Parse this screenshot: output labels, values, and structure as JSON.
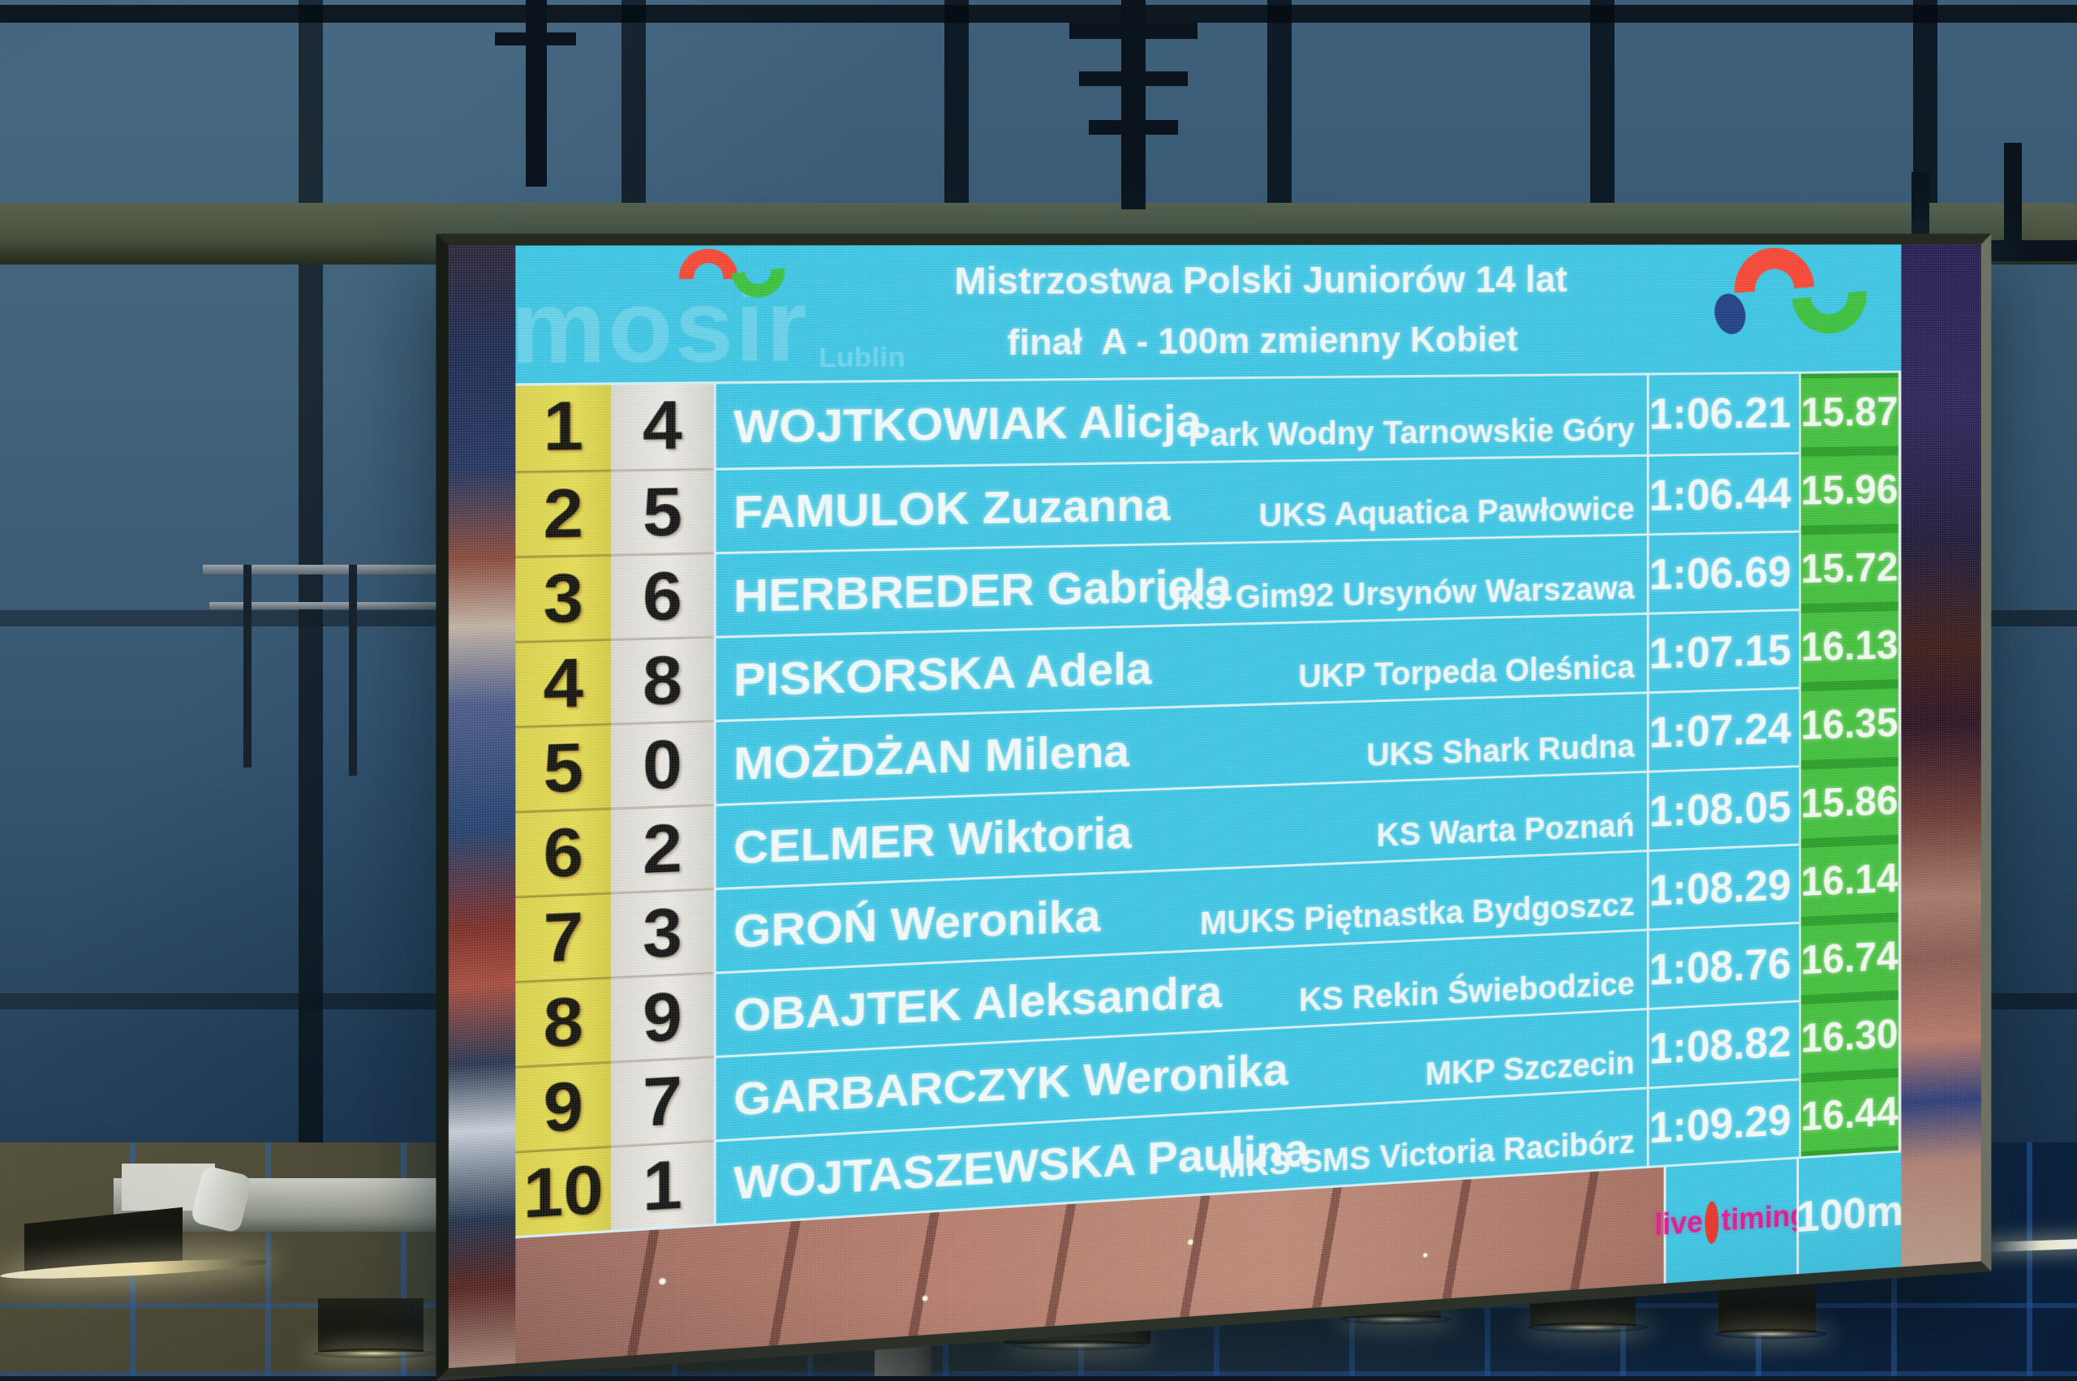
{
  "scoreboard": {
    "header": {
      "title_line1": "Mistrzostwa Polski Juniorów 14 lat",
      "title_line2": "finał  A - 100m zmienny Kobiet"
    },
    "branding": {
      "watermark": "mosir",
      "watermark_sub": "Lublin",
      "live_label": "live",
      "timing_label": "timing",
      "distance_label": "100m"
    },
    "results": {
      "columns": [
        "place",
        "lane",
        "name",
        "club",
        "time",
        "split"
      ],
      "rows": [
        {
          "place": "1",
          "lane": "4",
          "name": "WOJTKOWIAK Alicja",
          "club": "Park Wodny Tarnowskie Góry",
          "time": "1:06.21",
          "split": "15.87"
        },
        {
          "place": "2",
          "lane": "5",
          "name": "FAMULOK Zuzanna",
          "club": "UKS Aquatica Pawłowice",
          "time": "1:06.44",
          "split": "15.96"
        },
        {
          "place": "3",
          "lane": "6",
          "name": "HERBREDER Gabriela",
          "club": "UKS Gim92 Ursynów Warszawa",
          "time": "1:06.69",
          "split": "15.72"
        },
        {
          "place": "4",
          "lane": "8",
          "name": "PISKORSKA Adela",
          "club": "UKP Torpeda Oleśnica",
          "time": "1:07.15",
          "split": "16.13"
        },
        {
          "place": "5",
          "lane": "0",
          "name": "MOŻDŻAN Milena",
          "club": "UKS Shark Rudna",
          "time": "1:07.24",
          "split": "16.35"
        },
        {
          "place": "6",
          "lane": "2",
          "name": "CELMER Wiktoria",
          "club": "KS Warta Poznań",
          "time": "1:08.05",
          "split": "15.86"
        },
        {
          "place": "7",
          "lane": "3",
          "name": "GROŃ Weronika",
          "club": "MUKS Piętnastka Bydgoszcz",
          "time": "1:08.29",
          "split": "16.14"
        },
        {
          "place": "8",
          "lane": "9",
          "name": "OBAJTEK Aleksandra",
          "club": "KS Rekin Świebodzice",
          "time": "1:08.76",
          "split": "16.74"
        },
        {
          "place": "9",
          "lane": "7",
          "name": "GARBARCZYK Weronika",
          "club": "MKP Szczecin",
          "time": "1:08.82",
          "split": "16.30"
        },
        {
          "place": "10",
          "lane": "1",
          "name": "WOJTASZEWSKA Paulina",
          "club": "MKS-SMS Victoria Racibórz",
          "time": "1:09.29",
          "split": "16.44"
        }
      ]
    },
    "colors": {
      "screen_cyan": "#3cc9e8",
      "place_yellow": "#e3da4e",
      "lane_white": "#e9e7e2",
      "split_green": "#41c23a",
      "text_white": "#f4feff",
      "digit_black": "#121212",
      "livetiming_magenta": "#e5148e",
      "livetiming_ring_red": "#e93227",
      "logo_red": "#fb4530",
      "logo_green": "#39c43c",
      "logo_navy": "#1d3e85"
    }
  }
}
